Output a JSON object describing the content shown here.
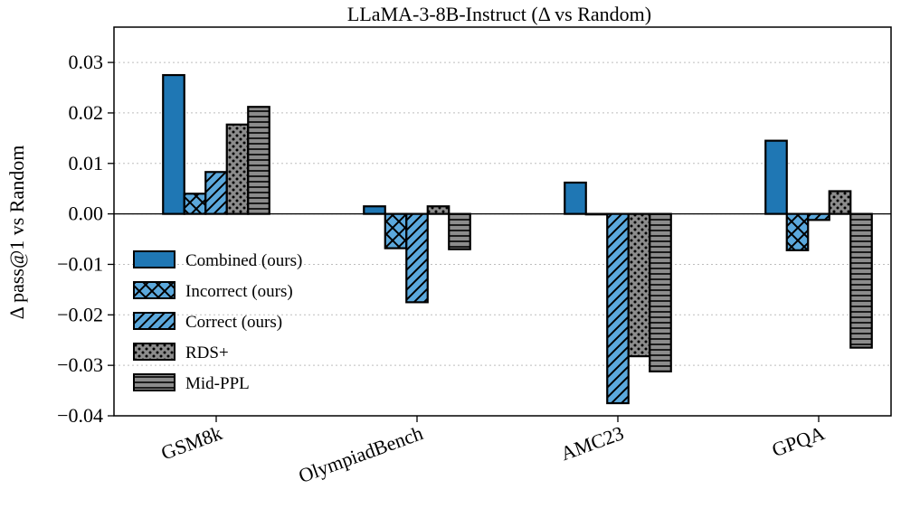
{
  "chart_data": {
    "type": "bar",
    "title": "LLaMA-3-8B-Instruct (Δ vs Random)",
    "xlabel": "",
    "ylabel": "Δ pass@1 vs Random",
    "ylim": [
      -0.04,
      0.037
    ],
    "yticks": [
      "0.03",
      "0.02",
      "0.01",
      "0.00",
      "−0.01",
      "−0.02",
      "−0.03",
      "−0.04"
    ],
    "ytick_values": [
      0.03,
      0.02,
      0.01,
      0.0,
      -0.01,
      -0.02,
      -0.03,
      -0.04
    ],
    "grid": "horizontal-dotted",
    "legend_position": "lower-left",
    "categories": [
      "GSM8k",
      "OlympiadBench",
      "AMC23",
      "GPQA"
    ],
    "series": [
      {
        "name": "Combined (ours)",
        "color": "#1f77b4",
        "pattern": "solid",
        "values": [
          0.0275,
          0.0015,
          0.0062,
          0.0145
        ]
      },
      {
        "name": "Incorrect (ours)",
        "color": "#5ba8dc",
        "pattern": "crosshatch",
        "values": [
          0.004,
          -0.0068,
          0.0,
          -0.0072
        ]
      },
      {
        "name": "Correct (ours)",
        "color": "#5ba8dc",
        "pattern": "diagonal",
        "values": [
          0.0083,
          -0.0175,
          -0.0375,
          -0.0012
        ]
      },
      {
        "name": "RDS+",
        "color": "#8c8c8c",
        "pattern": "dots",
        "values": [
          0.0177,
          0.0015,
          -0.0282,
          0.0045
        ]
      },
      {
        "name": "Mid-PPL",
        "color": "#8c8c8c",
        "pattern": "horizontal",
        "values": [
          0.0212,
          -0.007,
          -0.0312,
          -0.0265
        ]
      }
    ]
  }
}
